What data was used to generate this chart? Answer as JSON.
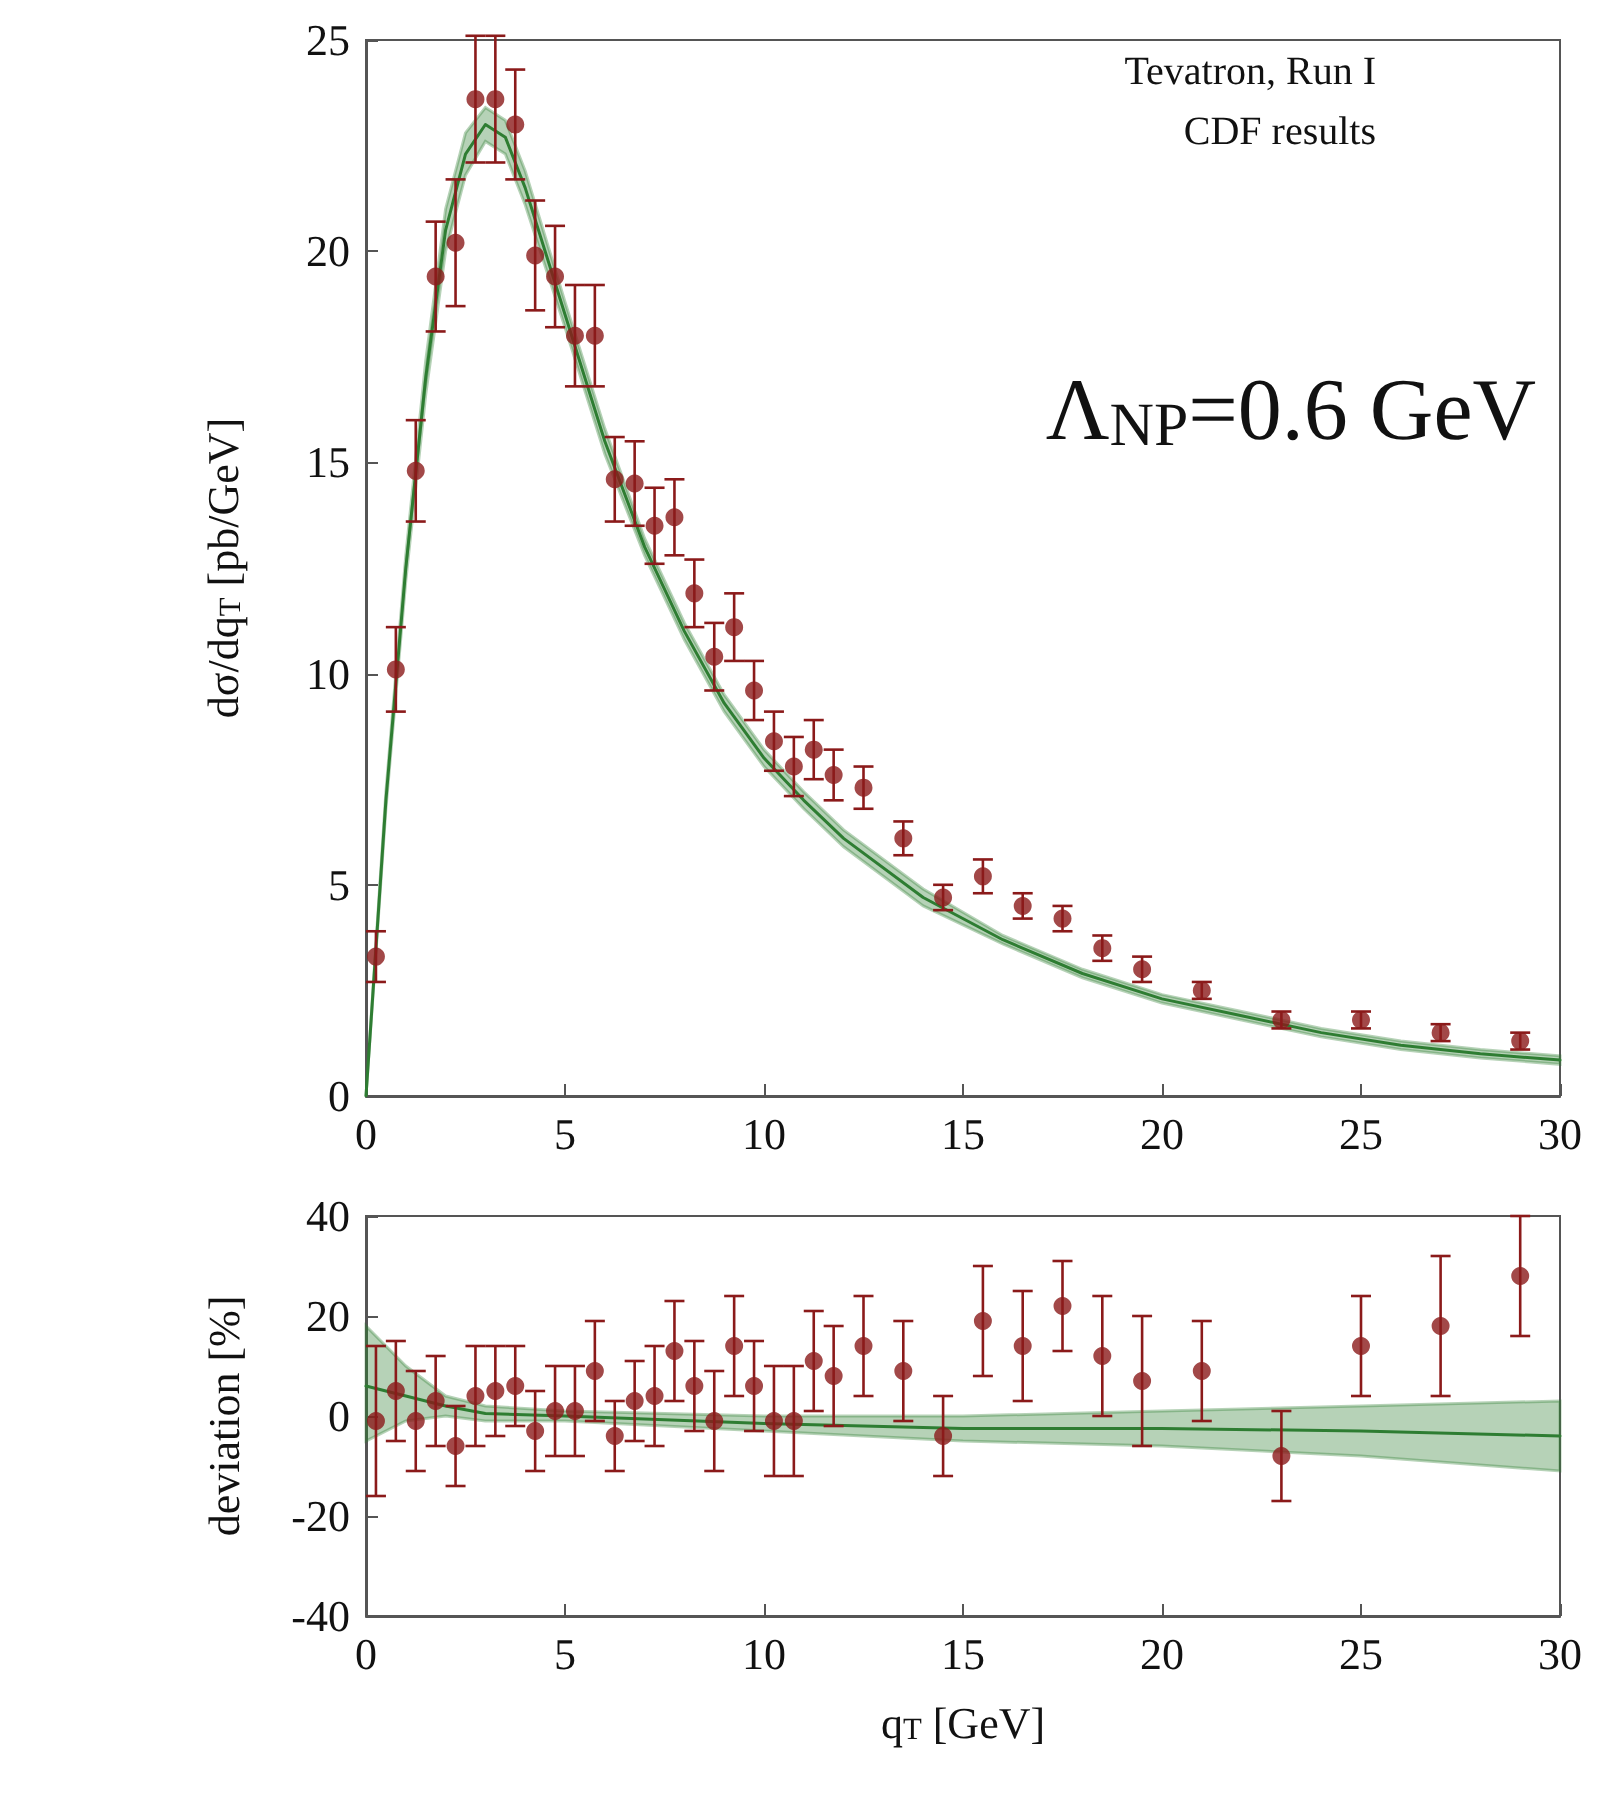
{
  "chart_data": [
    {
      "type": "scatter",
      "ylabel": "dσ/dq$_{T}$ [pb/GeV]",
      "annotations": [
        "Tevatron, Run I",
        "CDF results",
        "Λ$_{NP}$=0.6 GeV"
      ],
      "xlim": [
        0,
        30
      ],
      "xticks": [
        0,
        5,
        10,
        15,
        20,
        25,
        30
      ],
      "ylim": [
        0,
        25
      ],
      "yticks": [
        0,
        5,
        10,
        15,
        20,
        25
      ],
      "grid": false,
      "series": [
        {
          "type": "line",
          "marker": "none",
          "color": "#2e7d32",
          "x": [
            0,
            0.5,
            1,
            1.5,
            2,
            2.5,
            3,
            3.5,
            4,
            5,
            6,
            7,
            8,
            9,
            10,
            11,
            12,
            14,
            16,
            18,
            20,
            22,
            24,
            26,
            28,
            30
          ],
          "values": [
            0,
            7,
            12.5,
            17,
            20.5,
            22.3,
            23,
            22.7,
            21.5,
            18.5,
            15.5,
            13,
            11,
            9.3,
            8,
            7,
            6.1,
            4.7,
            3.7,
            2.9,
            2.3,
            1.9,
            1.5,
            1.2,
            1,
            0.85
          ],
          "lower": [
            0,
            6.8,
            12.2,
            16.6,
            20,
            21.8,
            22.6,
            22.3,
            21.1,
            18.2,
            15.2,
            12.8,
            10.8,
            9.1,
            7.8,
            6.8,
            5.9,
            4.5,
            3.6,
            2.8,
            2.2,
            1.8,
            1.4,
            1.1,
            0.9,
            0.75
          ],
          "upper": [
            0,
            7.2,
            12.8,
            17.4,
            21,
            22.8,
            23.4,
            23.1,
            21.9,
            18.8,
            15.8,
            13.2,
            11.2,
            9.5,
            8.2,
            7.2,
            6.3,
            4.9,
            3.8,
            3,
            2.4,
            2,
            1.6,
            1.3,
            1.1,
            0.95
          ]
        },
        {
          "marker": "circle",
          "color": "#8b1a1a",
          "x": [
            0.25,
            0.75,
            1.25,
            1.75,
            2.25,
            2.75,
            3.25,
            3.75,
            4.25,
            4.75,
            5.25,
            5.75,
            6.25,
            6.75,
            7.25,
            7.75,
            8.25,
            8.75,
            9.25,
            9.75,
            10.25,
            10.75,
            11.25,
            11.75,
            12.5,
            13.5,
            14.5,
            15.5,
            16.5,
            17.5,
            18.5,
            19.5,
            21,
            23,
            25,
            27,
            29
          ],
          "values": [
            3.3,
            10.1,
            14.8,
            19.4,
            20.2,
            23.6,
            23.6,
            23,
            19.9,
            19.4,
            18,
            18,
            14.6,
            14.5,
            13.5,
            13.7,
            11.9,
            10.4,
            11.1,
            9.6,
            8.4,
            7.8,
            8.2,
            7.6,
            7.3,
            6.1,
            4.7,
            5.2,
            4.5,
            4.2,
            3.5,
            3,
            2.5,
            1.8,
            1.8,
            1.5,
            1.3
          ],
          "errors": [
            0.6,
            1,
            1.2,
            1.3,
            1.5,
            1.5,
            1.5,
            1.3,
            1.3,
            1.2,
            1.2,
            1.2,
            1,
            1,
            0.9,
            0.9,
            0.8,
            0.8,
            0.8,
            0.7,
            0.7,
            0.7,
            0.7,
            0.6,
            0.5,
            0.4,
            0.3,
            0.4,
            0.3,
            0.3,
            0.3,
            0.3,
            0.2,
            0.2,
            0.2,
            0.2,
            0.2
          ]
        }
      ]
    },
    {
      "type": "scatter",
      "xlabel": "q$_{T}$ [GeV]",
      "ylabel": "deviation [%]",
      "xlim": [
        0,
        30
      ],
      "xticks": [
        0,
        5,
        10,
        15,
        20,
        25,
        30
      ],
      "ylim": [
        -40,
        40
      ],
      "yticks": [
        -40,
        -20,
        0,
        20,
        40
      ],
      "grid": false,
      "series": [
        {
          "type": "line",
          "marker": "none",
          "color": "#2e7d32",
          "x": [
            0,
            1,
            2,
            3,
            5,
            10,
            15,
            20,
            25,
            30
          ],
          "values": [
            6,
            4,
            2,
            0.5,
            0,
            -1.5,
            -2.5,
            -2.5,
            -3,
            -4
          ],
          "lower": [
            -5,
            -1,
            0,
            -1,
            -1,
            -3,
            -5,
            -6,
            -8,
            -11
          ],
          "upper": [
            18,
            10,
            4,
            2,
            1,
            0,
            0,
            1,
            2,
            3
          ]
        },
        {
          "marker": "circle",
          "color": "#8b1a1a",
          "x": [
            0.25,
            0.75,
            1.25,
            1.75,
            2.25,
            2.75,
            3.25,
            3.75,
            4.25,
            4.75,
            5.25,
            5.75,
            6.25,
            6.75,
            7.25,
            7.75,
            8.25,
            8.75,
            9.25,
            9.75,
            10.25,
            10.75,
            11.25,
            11.75,
            12.5,
            13.5,
            14.5,
            15.5,
            16.5,
            17.5,
            18.5,
            19.5,
            21,
            23,
            25,
            27,
            29
          ],
          "values": [
            -1,
            5,
            -1,
            3,
            -6,
            4,
            5,
            6,
            -3,
            1,
            1,
            9,
            -4,
            3,
            4,
            13,
            6,
            -1,
            14,
            6,
            -1,
            -1,
            11,
            8,
            14,
            9,
            -4,
            19,
            14,
            22,
            12,
            7,
            9,
            -8,
            14,
            18,
            28
          ],
          "errors": [
            15,
            10,
            10,
            9,
            8,
            10,
            9,
            8,
            8,
            9,
            9,
            10,
            7,
            8,
            10,
            10,
            9,
            10,
            10,
            9,
            11,
            11,
            10,
            10,
            10,
            10,
            8,
            11,
            11,
            9,
            12,
            13,
            10,
            9,
            10,
            14,
            12
          ]
        }
      ]
    }
  ]
}
